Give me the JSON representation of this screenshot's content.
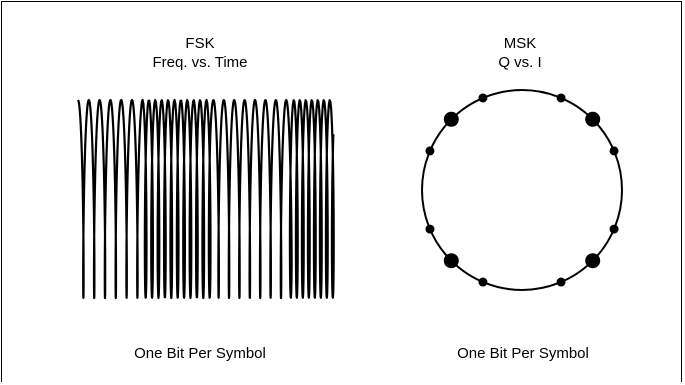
{
  "fsk": {
    "title": "FSK",
    "subtitle": "Freq. vs. Time",
    "caption": "One Bit Per Symbol",
    "plot": "frequency-vs-time waveform"
  },
  "msk": {
    "title": "MSK",
    "subtitle": "Q vs. I",
    "caption": "One Bit Per Symbol",
    "plot": "constellation circle with 12 points"
  }
}
